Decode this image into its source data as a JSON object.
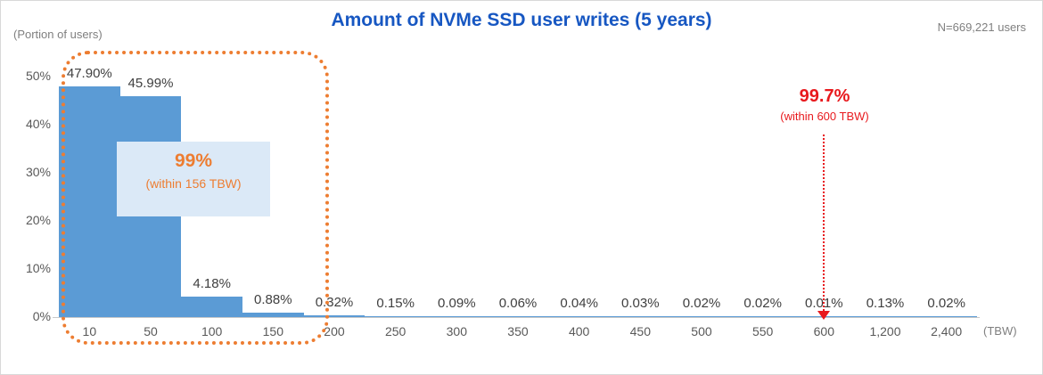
{
  "header": {
    "portion_label": "(Portion of users)",
    "title": "Amount of NVMe SSD user writes (5 years)",
    "sample_label": "N=669,221 users"
  },
  "chart_data": {
    "type": "bar",
    "title": "Amount of NVMe SSD user writes (5 years)",
    "xlabel": "(TBW)",
    "ylabel": "(Portion of users)",
    "ylim": [
      0,
      50
    ],
    "grid": "off",
    "legend": "none",
    "y_ticks": [
      {
        "value": 50,
        "label": "50%"
      },
      {
        "value": 40,
        "label": "40%"
      },
      {
        "value": 30,
        "label": "30%"
      },
      {
        "value": 20,
        "label": "20%"
      },
      {
        "value": 10,
        "label": "10%"
      },
      {
        "value": 0,
        "label": "0%"
      }
    ],
    "categories": [
      "10",
      "50",
      "100",
      "150",
      "200",
      "250",
      "300",
      "350",
      "400",
      "450",
      "500",
      "550",
      "600",
      "1,200",
      "2,400"
    ],
    "values": [
      47.9,
      45.99,
      4.18,
      0.88,
      0.32,
      0.15,
      0.09,
      0.06,
      0.04,
      0.03,
      0.02,
      0.02,
      0.01,
      0.13,
      0.02
    ],
    "value_labels": [
      "47.90%",
      "45.99%",
      "4.18%",
      "0.88%",
      "0.32%",
      "0.15%",
      "0.09%",
      "0.06%",
      "0.04%",
      "0.03%",
      "0.02%",
      "0.02%",
      "0.01%",
      "0.13%",
      "0.02%"
    ],
    "annotations": {
      "orange_box": {
        "headline": "99%",
        "subtext": "(within 156 TBW)",
        "covers_categories": [
          "10",
          "150"
        ]
      },
      "red_callout": {
        "headline": "99.7%",
        "subtext": "(within 600 TBW)",
        "points_to_category": "600"
      }
    },
    "colors": {
      "bar": "#5b9bd5",
      "title": "#1757c2",
      "orange": "#ed7d31",
      "red": "#e8191d",
      "annotation_bg": "#dbe9f7",
      "axis": "#c9c9c9",
      "label": "#3f3f3f",
      "muted": "#7f7f7f"
    }
  }
}
